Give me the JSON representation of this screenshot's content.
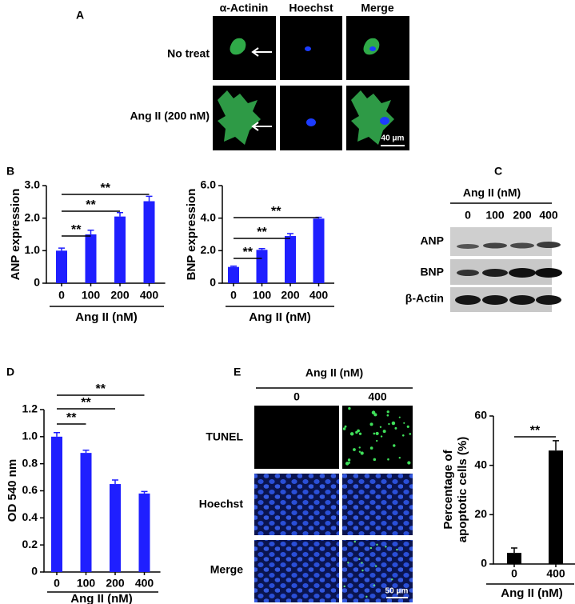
{
  "panel_a": {
    "label": "A",
    "columns": [
      "α-Actinin",
      "Hoechst",
      "Merge"
    ],
    "rows": [
      "No treat",
      "Ang II (200 nM)"
    ],
    "scale_bar": "40 μm"
  },
  "panel_b_label": "B",
  "panel_c": {
    "label": "C",
    "header": "Ang II (nM)",
    "lanes": [
      "0",
      "100",
      "200",
      "400"
    ],
    "rows": [
      "ANP",
      "BNP",
      "β-Actin"
    ]
  },
  "panel_d_label": "D",
  "panel_e": {
    "label": "E",
    "header": "Ang II (nM)",
    "columns": [
      "0",
      "400"
    ],
    "rows": [
      "TUNEL",
      "Hoechst",
      "Merge"
    ],
    "scale_bar": "50 μm"
  },
  "chart_data": [
    {
      "type": "bar",
      "ylabel": "ANP expression",
      "xlabel": "Ang II (nM)",
      "categories": [
        "0",
        "100",
        "200",
        "400"
      ],
      "values": [
        1.0,
        1.5,
        2.05,
        2.52
      ],
      "errors": [
        0.08,
        0.13,
        0.12,
        0.15
      ],
      "color": "#1f1fff",
      "ylim": [
        0,
        3
      ],
      "yticks": [
        0,
        {
          "value": 1,
          "label": "1.0"
        },
        {
          "value": 2,
          "label": "2.0"
        },
        {
          "value": 3,
          "label": "3.0"
        }
      ],
      "brackets": [
        {
          "label": "**",
          "from": 0,
          "to": 1
        },
        {
          "label": "**",
          "from": 0,
          "to": 2
        },
        {
          "label": "**",
          "from": 0,
          "to": 3
        }
      ]
    },
    {
      "type": "bar",
      "ylabel": "BNP expression",
      "xlabel": "Ang II (nM)",
      "categories": [
        "0",
        "100",
        "200",
        "400"
      ],
      "values": [
        1.0,
        2.05,
        2.9,
        3.97
      ],
      "errors": [
        0.05,
        0.08,
        0.15,
        0.08
      ],
      "color": "#1f1fff",
      "ylim": [
        0,
        6
      ],
      "yticks": [
        0,
        {
          "value": 2,
          "label": "2.0"
        },
        {
          "value": 4,
          "label": "4.0"
        },
        {
          "value": 6,
          "label": "6.0"
        }
      ],
      "brackets": [
        {
          "label": "**",
          "from": 0,
          "to": 1
        },
        {
          "label": "**",
          "from": 0,
          "to": 2
        },
        {
          "label": "**",
          "from": 0,
          "to": 3
        }
      ]
    },
    {
      "type": "bar",
      "ylabel": "OD 540 nm",
      "xlabel": "Ang II (nM)",
      "categories": [
        "0",
        "100",
        "200",
        "400"
      ],
      "values": [
        1.0,
        0.88,
        0.65,
        0.58
      ],
      "errors": [
        0.03,
        0.02,
        0.03,
        0.015
      ],
      "color": "#1f1fff",
      "ylim": [
        0,
        1.2
      ],
      "yticks": [
        0,
        0.2,
        0.4,
        0.6,
        0.8,
        {
          "value": 1,
          "label": "1.0"
        },
        1.2
      ],
      "brackets": [
        {
          "label": "**",
          "from": 0,
          "to": 1
        },
        {
          "label": "**",
          "from": 0,
          "to": 2
        },
        {
          "label": "**",
          "from": 0,
          "to": 3
        }
      ]
    },
    {
      "type": "bar",
      "ylabel": [
        "Percentage of",
        "apoptotic cells (%)"
      ],
      "xlabel": "Ang II (nM)",
      "categories": [
        "0",
        "400"
      ],
      "values": [
        4.5,
        46
      ],
      "errors": [
        2,
        4
      ],
      "color": "#000000",
      "ylim": [
        0,
        60
      ],
      "yticks": [
        0,
        20,
        40,
        60
      ],
      "brackets": [
        {
          "label": "**",
          "from": 0,
          "to": 1
        }
      ]
    }
  ]
}
